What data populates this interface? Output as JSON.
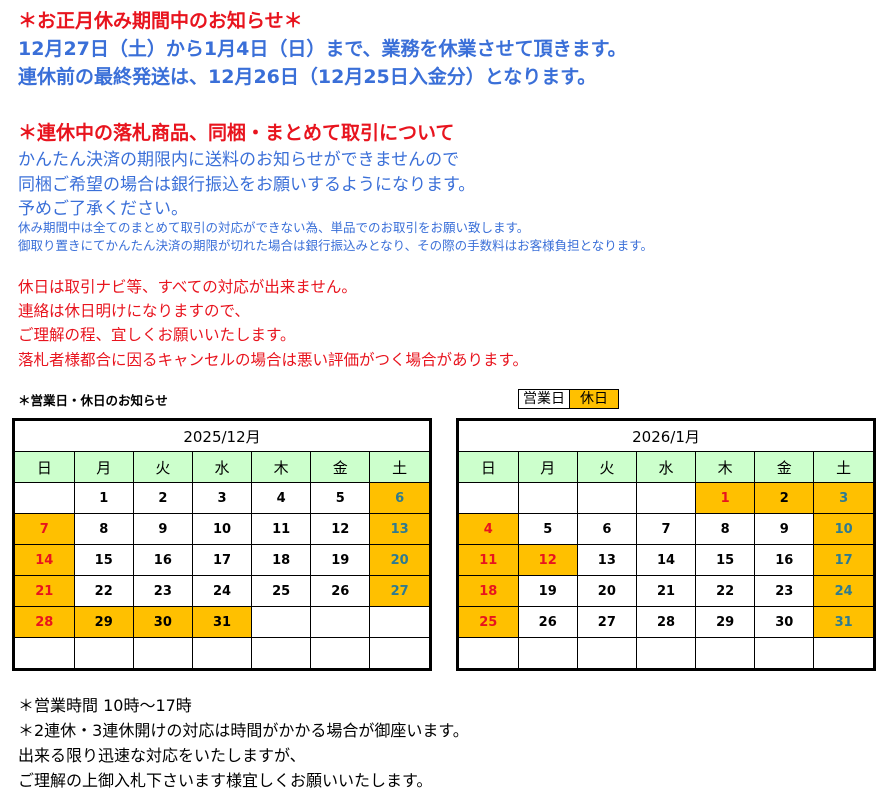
{
  "notice": {
    "l1": "＊お正月休み期間中のお知らせ＊",
    "l2": "12月27日（土）から1月4日（日）まで、業務を休業させて頂きます。",
    "l3": "連休前の最終発送は、12月26日（12月25日入金分）となります。",
    "l4": "＊連休中の落札商品、同梱・まとめて取引について",
    "l5": "かんたん決済の期限内に送料のお知らせができませんので",
    "l6": "同梱ご希望の場合は銀行振込をお願いするようになります。",
    "l7": "予めご了承ください。",
    "l8": "休み期間中は全てのまとめて取引の対応ができない為、単品でのお取引をお願い致します。",
    "l9": "御取り置きにてかんたん決済の期限が切れた場合は銀行振込みとなり、その際の手数料はお客様負担となります。",
    "l10": "休日は取引ナビ等、すべての対応が出来ません。",
    "l11": "連絡は休日明けになりますので、",
    "l12": "ご理解の程、宜しくお願いいたします。",
    "l13": "落札者様都合に因るキャンセルの場合は悪い評価がつく場合があります。"
  },
  "calendar_label": "＊営業日・休日のお知らせ",
  "legend": {
    "business": "営業日",
    "holiday": "休日"
  },
  "colors": {
    "holiday_bg": "#ffc000",
    "weekday_header_bg": "#ccffcc",
    "sunday": "#e8141e",
    "saturday": "#2f7b90"
  },
  "weekdays": [
    "日",
    "月",
    "火",
    "水",
    "木",
    "金",
    "土"
  ],
  "calendars": [
    {
      "title": "2025/12月",
      "first_weekday": 1,
      "days": 31,
      "holidays": [
        6,
        7,
        13,
        14,
        20,
        21,
        27,
        28,
        29,
        30,
        31
      ],
      "red_days": [
        7,
        14,
        21,
        28
      ]
    },
    {
      "title": "2026/1月",
      "first_weekday": 4,
      "days": 31,
      "holidays": [
        1,
        2,
        3,
        4,
        10,
        11,
        12,
        17,
        18,
        24,
        25,
        31
      ],
      "red_days": [
        1,
        4,
        11,
        12,
        18,
        25
      ]
    }
  ],
  "footer": {
    "l1": "＊営業時間 10時～17時",
    "l2": "＊2連休・3連休開けの対応は時間がかかる場合が御座います。",
    "l3": "出来る限り迅速な対応をいたしますが、",
    "l4": "ご理解の上御入札下さいます様宜しくお願いいたします。"
  }
}
